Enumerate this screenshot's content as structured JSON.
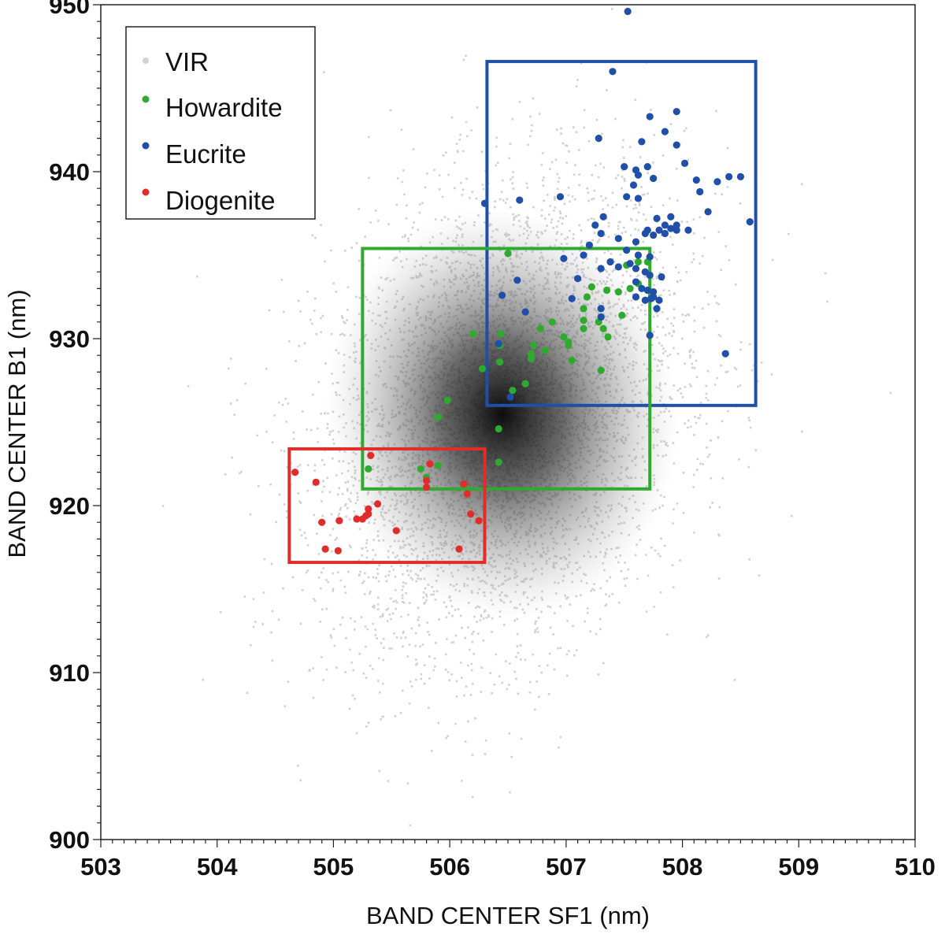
{
  "chart_data": {
    "type": "scatter",
    "title": "",
    "xlabel": "BAND CENTER SF1 (nm)",
    "ylabel": "BAND CENTER B1 (nm)",
    "xlim": [
      503,
      510
    ],
    "ylim": [
      900,
      950
    ],
    "x_ticks": [
      503,
      504,
      505,
      506,
      507,
      508,
      509,
      510
    ],
    "y_ticks": [
      900,
      910,
      920,
      930,
      940,
      950
    ],
    "x_tick_labels": [
      "503",
      "504",
      "505",
      "506",
      "507",
      "508",
      "509",
      "510"
    ],
    "y_tick_labels": [
      "900",
      "910",
      "920",
      "930",
      "940",
      "950"
    ],
    "grid": false,
    "legend_position": "top-left",
    "legend": [
      "VIR",
      "Howardite",
      "Eucrite",
      "Diogenite"
    ],
    "background_density": {
      "name": "VIR",
      "color": "#aaaaaa",
      "center_x": 506.45,
      "center_y": 925.5,
      "sigma_x": 0.72,
      "sigma_y": 6.2,
      "correlation": 0.25
    },
    "series": [
      {
        "name": "Howardite",
        "color": "#2eaa2e",
        "points": [
          [
            505.3,
            922.2
          ],
          [
            505.75,
            922.2
          ],
          [
            505.8,
            921.7
          ],
          [
            505.9,
            922.4
          ],
          [
            505.9,
            925.3
          ],
          [
            505.98,
            926.3
          ],
          [
            506.12,
            921.2
          ],
          [
            506.2,
            930.3
          ],
          [
            506.28,
            928.2
          ],
          [
            506.42,
            922.6
          ],
          [
            506.42,
            924.6
          ],
          [
            506.43,
            928.6
          ],
          [
            506.43,
            929.6
          ],
          [
            506.44,
            930.3
          ],
          [
            506.5,
            935.1
          ],
          [
            506.54,
            926.9
          ],
          [
            506.65,
            927.3
          ],
          [
            506.7,
            928.8
          ],
          [
            506.7,
            929.1
          ],
          [
            506.72,
            929.6
          ],
          [
            506.78,
            930.6
          ],
          [
            506.82,
            929.3
          ],
          [
            506.88,
            931.0
          ],
          [
            506.98,
            930.1
          ],
          [
            507.02,
            929.6
          ],
          [
            507.02,
            929.8
          ],
          [
            507.05,
            928.7
          ],
          [
            507.15,
            930.6
          ],
          [
            507.15,
            931.1
          ],
          [
            507.15,
            931.8
          ],
          [
            507.18,
            932.5
          ],
          [
            507.22,
            933.1
          ],
          [
            507.28,
            931.0
          ],
          [
            507.3,
            928.1
          ],
          [
            507.32,
            930.6
          ],
          [
            507.35,
            932.9
          ],
          [
            507.36,
            930.1
          ],
          [
            507.45,
            932.8
          ],
          [
            507.48,
            931.4
          ],
          [
            507.52,
            934.4
          ],
          [
            507.55,
            933.0
          ],
          [
            507.62,
            934.6
          ],
          [
            507.62,
            933.3
          ],
          [
            507.7,
            934.6
          ]
        ]
      },
      {
        "name": "Eucrite",
        "color": "#1f4fa8",
        "points": [
          [
            507.53,
            949.6
          ],
          [
            507.4,
            946.0
          ],
          [
            507.28,
            942.0
          ],
          [
            507.72,
            943.3
          ],
          [
            507.95,
            943.6
          ],
          [
            507.65,
            941.8
          ],
          [
            507.85,
            942.4
          ],
          [
            507.95,
            941.6
          ],
          [
            508.02,
            940.5
          ],
          [
            507.5,
            940.3
          ],
          [
            507.6,
            940.1
          ],
          [
            507.7,
            940.3
          ],
          [
            507.58,
            939.2
          ],
          [
            507.62,
            939.8
          ],
          [
            507.75,
            939.6
          ],
          [
            508.12,
            939.5
          ],
          [
            508.3,
            939.4
          ],
          [
            508.4,
            939.7
          ],
          [
            508.5,
            939.7
          ],
          [
            507.52,
            938.5
          ],
          [
            507.62,
            938.4
          ],
          [
            508.15,
            938.8
          ],
          [
            508.22,
            937.6
          ],
          [
            506.6,
            938.3
          ],
          [
            506.3,
            938.1
          ],
          [
            506.95,
            938.5
          ],
          [
            507.32,
            937.3
          ],
          [
            507.25,
            936.8
          ],
          [
            507.3,
            936.3
          ],
          [
            507.78,
            937.2
          ],
          [
            507.85,
            936.8
          ],
          [
            507.9,
            937.3
          ],
          [
            507.95,
            936.8
          ],
          [
            508.05,
            936.5
          ],
          [
            507.7,
            936.5
          ],
          [
            507.75,
            936.2
          ],
          [
            507.8,
            936.5
          ],
          [
            507.85,
            936.3
          ],
          [
            507.9,
            936.6
          ],
          [
            507.95,
            936.5
          ],
          [
            508.58,
            937.0
          ],
          [
            507.45,
            936.0
          ],
          [
            507.68,
            936.3
          ],
          [
            507.6,
            935.8
          ],
          [
            507.2,
            935.6
          ],
          [
            507.15,
            935.0
          ],
          [
            507.52,
            935.3
          ],
          [
            507.62,
            935.0
          ],
          [
            507.72,
            934.9
          ],
          [
            507.55,
            934.5
          ],
          [
            507.6,
            934.2
          ],
          [
            507.68,
            934.0
          ],
          [
            507.72,
            933.8
          ],
          [
            507.6,
            933.4
          ],
          [
            507.65,
            933.0
          ],
          [
            507.7,
            932.9
          ],
          [
            507.6,
            932.5
          ],
          [
            507.68,
            932.3
          ],
          [
            507.75,
            932.8
          ],
          [
            507.75,
            932.5
          ],
          [
            507.8,
            932.3
          ],
          [
            506.98,
            934.8
          ],
          [
            507.1,
            933.6
          ],
          [
            507.3,
            934.2
          ],
          [
            507.38,
            934.6
          ],
          [
            507.45,
            934.3
          ],
          [
            506.58,
            933.5
          ],
          [
            506.45,
            932.6
          ],
          [
            506.65,
            931.6
          ],
          [
            507.05,
            932.4
          ],
          [
            507.3,
            931.3
          ],
          [
            507.3,
            931.8
          ],
          [
            507.73,
            932.4
          ],
          [
            507.72,
            930.2
          ],
          [
            507.78,
            931.8
          ],
          [
            507.82,
            933.7
          ],
          [
            508.37,
            929.1
          ],
          [
            506.42,
            929.7
          ],
          [
            506.52,
            926.5
          ]
        ]
      },
      {
        "name": "Diogenite",
        "color": "#e22b2b",
        "points": [
          [
            504.67,
            922.0
          ],
          [
            504.85,
            921.4
          ],
          [
            504.9,
            919.0
          ],
          [
            504.93,
            917.4
          ],
          [
            505.04,
            917.3
          ],
          [
            505.05,
            919.1
          ],
          [
            505.2,
            919.2
          ],
          [
            505.25,
            919.2
          ],
          [
            505.28,
            919.4
          ],
          [
            505.3,
            919.5
          ],
          [
            505.3,
            919.8
          ],
          [
            505.32,
            923.0
          ],
          [
            505.38,
            920.1
          ],
          [
            505.54,
            918.5
          ],
          [
            505.8,
            921.5
          ],
          [
            505.8,
            921.1
          ],
          [
            505.83,
            922.5
          ],
          [
            506.08,
            917.4
          ],
          [
            506.12,
            921.3
          ],
          [
            506.15,
            920.7
          ],
          [
            506.18,
            919.5
          ],
          [
            506.25,
            919.1
          ]
        ]
      }
    ],
    "boxes": [
      {
        "name": "Eucrite",
        "color": "#1f4fa8",
        "x": [
          506.32,
          508.63
        ],
        "y": [
          926.0,
          946.6
        ]
      },
      {
        "name": "Howardite",
        "color": "#2eaa2e",
        "x": [
          505.25,
          507.72
        ],
        "y": [
          921.0,
          935.4
        ]
      },
      {
        "name": "Diogenite",
        "color": "#e22b2b",
        "x": [
          504.62,
          506.3
        ],
        "y": [
          916.6,
          923.4
        ]
      }
    ]
  }
}
